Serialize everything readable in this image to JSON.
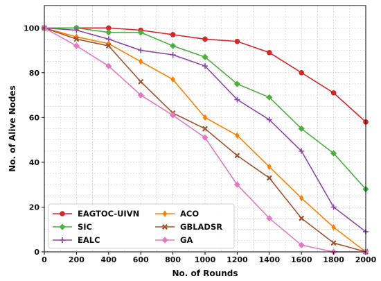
{
  "chart_data": {
    "type": "line",
    "xlabel": "No. of Rounds",
    "ylabel": "No. of Alive Nodes",
    "x": [
      0,
      200,
      400,
      600,
      800,
      1000,
      1200,
      1400,
      1600,
      1800,
      2000
    ],
    "xlim": [
      0,
      2000
    ],
    "ylim": [
      0,
      110
    ],
    "x_ticks": [
      "0",
      "200",
      "400",
      "600",
      "800",
      "1000",
      "1200",
      "1400",
      "1600",
      "1800",
      "2000"
    ],
    "y_ticks": [
      "0",
      "20",
      "40",
      "60",
      "80",
      "100"
    ],
    "grid": true,
    "legend_position": "bottom-left",
    "series": [
      {
        "name": "EAGTOC-UIVN",
        "color": "#d62728",
        "marker": "circle",
        "values": [
          100,
          100,
          100,
          99,
          97,
          95,
          94,
          89,
          80,
          71,
          58
        ]
      },
      {
        "name": "SIC",
        "color": "#4caf3f",
        "marker": "diamond",
        "values": [
          100,
          100,
          98,
          98,
          92,
          87,
          75,
          69,
          55,
          44,
          28
        ]
      },
      {
        "name": "EALC",
        "color": "#8e44ad",
        "marker": "plus",
        "values": [
          100,
          99,
          95,
          90,
          88,
          83,
          68,
          59,
          45,
          20,
          9
        ]
      },
      {
        "name": "ACO",
        "color": "#ff8000",
        "marker": "thin-diamond",
        "values": [
          100,
          96,
          93,
          85,
          77,
          60,
          52,
          38,
          24,
          11,
          0
        ]
      },
      {
        "name": "GBLADSR",
        "color": "#a0522d",
        "marker": "x",
        "values": [
          100,
          95,
          92,
          76,
          62,
          55,
          43,
          33,
          15,
          4,
          0
        ]
      },
      {
        "name": "GA",
        "color": "#e377c2",
        "marker": "diamond",
        "values": [
          100,
          92,
          83,
          70,
          61,
          51,
          30,
          15,
          3,
          0,
          0
        ]
      }
    ]
  }
}
